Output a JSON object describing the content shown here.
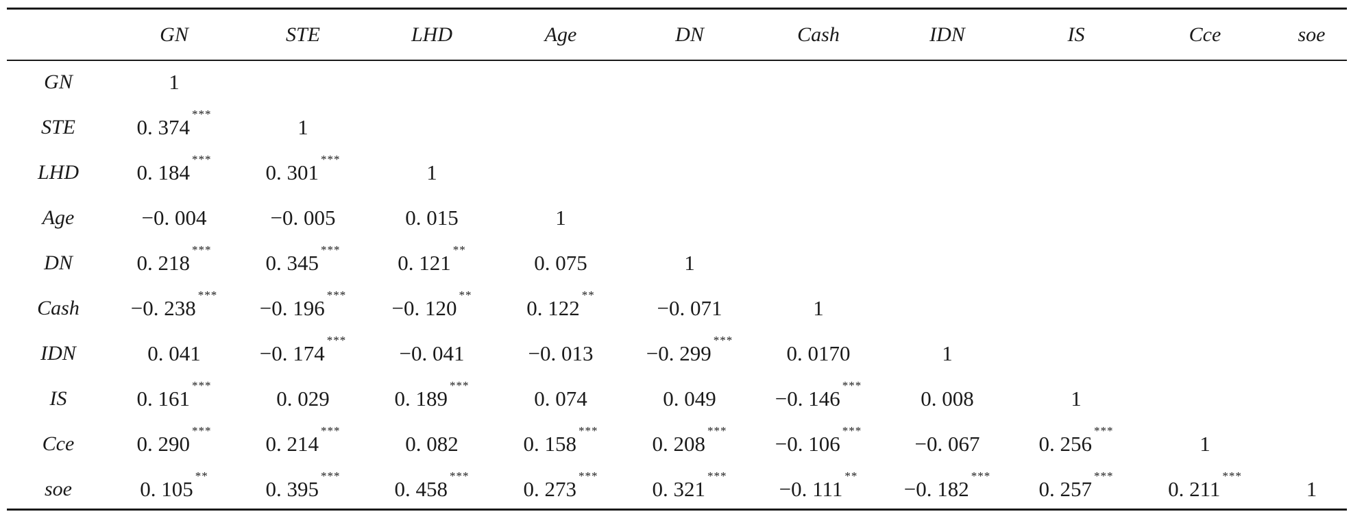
{
  "table": {
    "columns": [
      "",
      "GN",
      "STE",
      "LHD",
      "Age",
      "DN",
      "Cash",
      "IDN",
      "IS",
      "Cce",
      "soe"
    ],
    "rows": [
      {
        "label": "GN",
        "cells": [
          {
            "v": "1",
            "s": ""
          }
        ]
      },
      {
        "label": "STE",
        "cells": [
          {
            "v": "0. 374",
            "s": "***"
          },
          {
            "v": "1",
            "s": ""
          }
        ]
      },
      {
        "label": "LHD",
        "cells": [
          {
            "v": "0. 184",
            "s": "***"
          },
          {
            "v": "0. 301",
            "s": "***"
          },
          {
            "v": "1",
            "s": ""
          }
        ]
      },
      {
        "label": "Age",
        "cells": [
          {
            "v": "−0. 004",
            "s": ""
          },
          {
            "v": "−0. 005",
            "s": ""
          },
          {
            "v": "0. 015",
            "s": ""
          },
          {
            "v": "1",
            "s": ""
          }
        ]
      },
      {
        "label": "DN",
        "cells": [
          {
            "v": "0. 218",
            "s": "***"
          },
          {
            "v": "0. 345",
            "s": "***"
          },
          {
            "v": "0. 121",
            "s": "**"
          },
          {
            "v": "0. 075",
            "s": ""
          },
          {
            "v": "1",
            "s": ""
          }
        ]
      },
      {
        "label": "Cash",
        "cells": [
          {
            "v": "−0. 238",
            "s": "***"
          },
          {
            "v": "−0. 196",
            "s": "***"
          },
          {
            "v": "−0. 120",
            "s": "**"
          },
          {
            "v": "0. 122",
            "s": "**"
          },
          {
            "v": "−0. 071",
            "s": ""
          },
          {
            "v": "1",
            "s": ""
          }
        ]
      },
      {
        "label": "IDN",
        "cells": [
          {
            "v": "0. 041",
            "s": ""
          },
          {
            "v": "−0. 174",
            "s": "***"
          },
          {
            "v": "−0. 041",
            "s": ""
          },
          {
            "v": "−0. 013",
            "s": ""
          },
          {
            "v": "−0. 299",
            "s": "***"
          },
          {
            "v": "0. 0170",
            "s": ""
          },
          {
            "v": "1",
            "s": ""
          }
        ]
      },
      {
        "label": "IS",
        "cells": [
          {
            "v": "0. 161",
            "s": "***"
          },
          {
            "v": "0. 029",
            "s": ""
          },
          {
            "v": "0. 189",
            "s": "***"
          },
          {
            "v": "0. 074",
            "s": ""
          },
          {
            "v": "0. 049",
            "s": ""
          },
          {
            "v": "−0. 146",
            "s": "***"
          },
          {
            "v": "0. 008",
            "s": ""
          },
          {
            "v": "1",
            "s": ""
          }
        ]
      },
      {
        "label": "Cce",
        "cells": [
          {
            "v": "0. 290",
            "s": "***"
          },
          {
            "v": "0. 214",
            "s": "***"
          },
          {
            "v": "0. 082",
            "s": ""
          },
          {
            "v": "0. 158",
            "s": "***"
          },
          {
            "v": "0. 208",
            "s": "***"
          },
          {
            "v": "−0. 106",
            "s": "***"
          },
          {
            "v": "−0. 067",
            "s": ""
          },
          {
            "v": "0. 256",
            "s": "***"
          },
          {
            "v": "1",
            "s": ""
          }
        ]
      },
      {
        "label": "soe",
        "cells": [
          {
            "v": "0. 105",
            "s": "**"
          },
          {
            "v": "0. 395",
            "s": "***"
          },
          {
            "v": "0. 458",
            "s": "***"
          },
          {
            "v": "0. 273",
            "s": "***"
          },
          {
            "v": "0. 321",
            "s": "***"
          },
          {
            "v": "−0. 111",
            "s": "**"
          },
          {
            "v": "−0. 182",
            "s": "***"
          },
          {
            "v": "0. 257",
            "s": "***"
          },
          {
            "v": "0. 211",
            "s": "***"
          },
          {
            "v": "1",
            "s": ""
          }
        ]
      }
    ]
  }
}
